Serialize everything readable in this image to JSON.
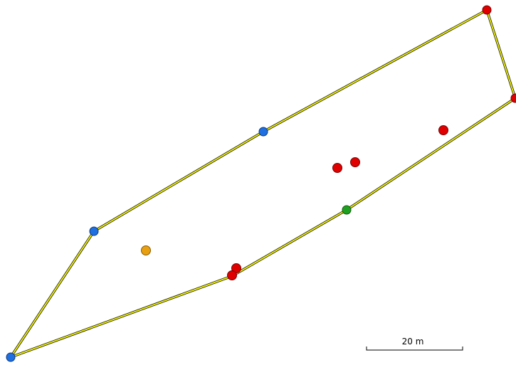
{
  "scale_bar": {
    "label": "20 m"
  }
}
